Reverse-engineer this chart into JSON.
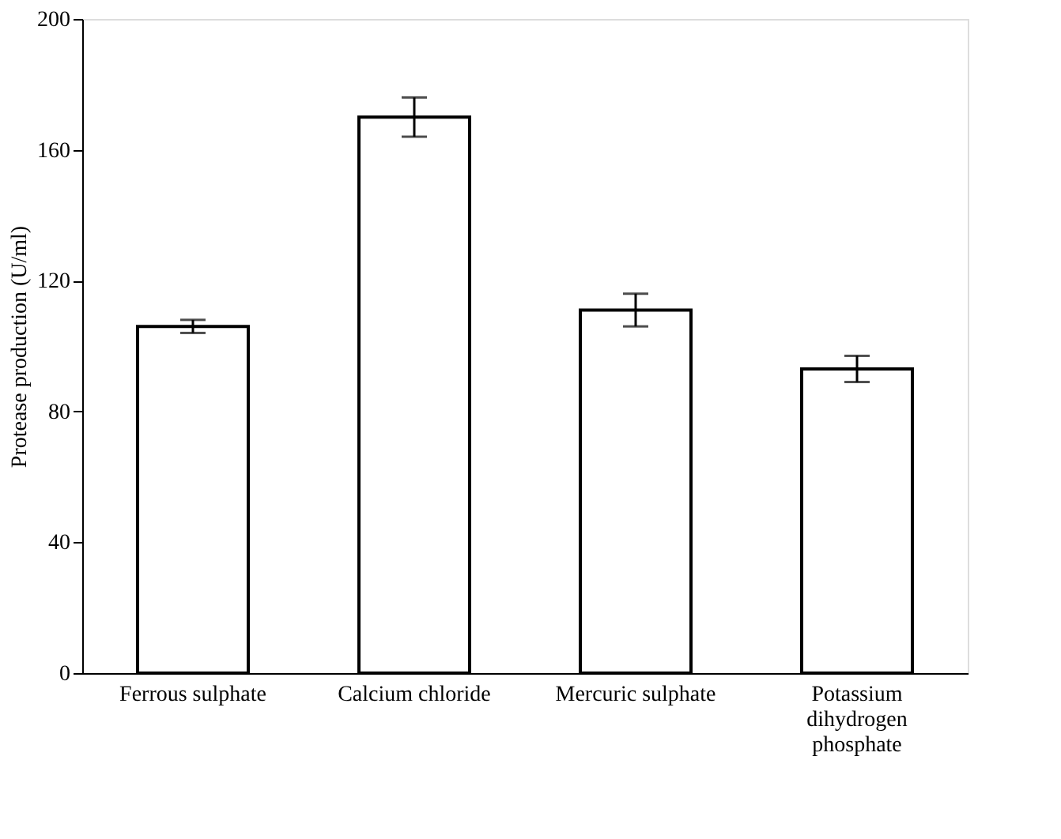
{
  "chart_data": {
    "type": "bar",
    "ylabel": "Protease production (U/ml)",
    "categories": [
      "Ferrous sulphate",
      "Calcium chloride",
      "Mercuric sulphate",
      "Potassium dihydrogen phosphate"
    ],
    "values": [
      106,
      170,
      111,
      93
    ],
    "errors": [
      2,
      6,
      5,
      4
    ],
    "color": "#ffffff",
    "ylim": [
      0,
      200
    ],
    "yticks": [
      0,
      40,
      80,
      120,
      160,
      200
    ],
    "grid": false
  }
}
